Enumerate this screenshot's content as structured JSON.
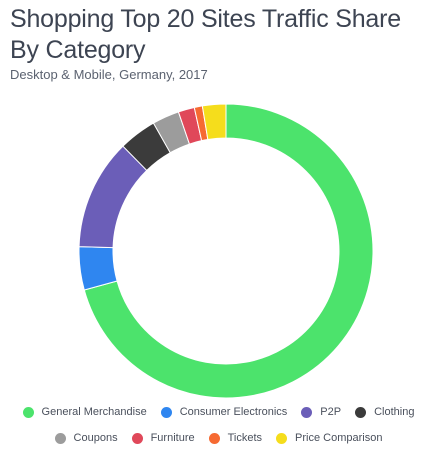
{
  "header": {
    "title": "Shopping Top 20 Sites Traffic Share By Category",
    "subtitle": "Desktop & Mobile, Germany, 2017"
  },
  "chart_data": {
    "type": "pie",
    "title": "Shopping Top 20 Sites Traffic Share By Category",
    "subtitle": "Desktop & Mobile, Germany, 2017",
    "donut": true,
    "legend_position": "bottom",
    "categories": [
      "General Merchandise",
      "Consumer Electronics",
      "P2P",
      "Clothing",
      "Coupons",
      "Furniture",
      "Tickets",
      "Price Comparison"
    ],
    "values": [
      71.5,
      4.8,
      12.3,
      4.2,
      3.0,
      1.8,
      0.9,
      2.6
    ],
    "colors": [
      "#4ce36c",
      "#2f86f0",
      "#6b5eb8",
      "#3b3b3b",
      "#9c9c9c",
      "#e0485a",
      "#f66a32",
      "#f5dd1c"
    ]
  }
}
